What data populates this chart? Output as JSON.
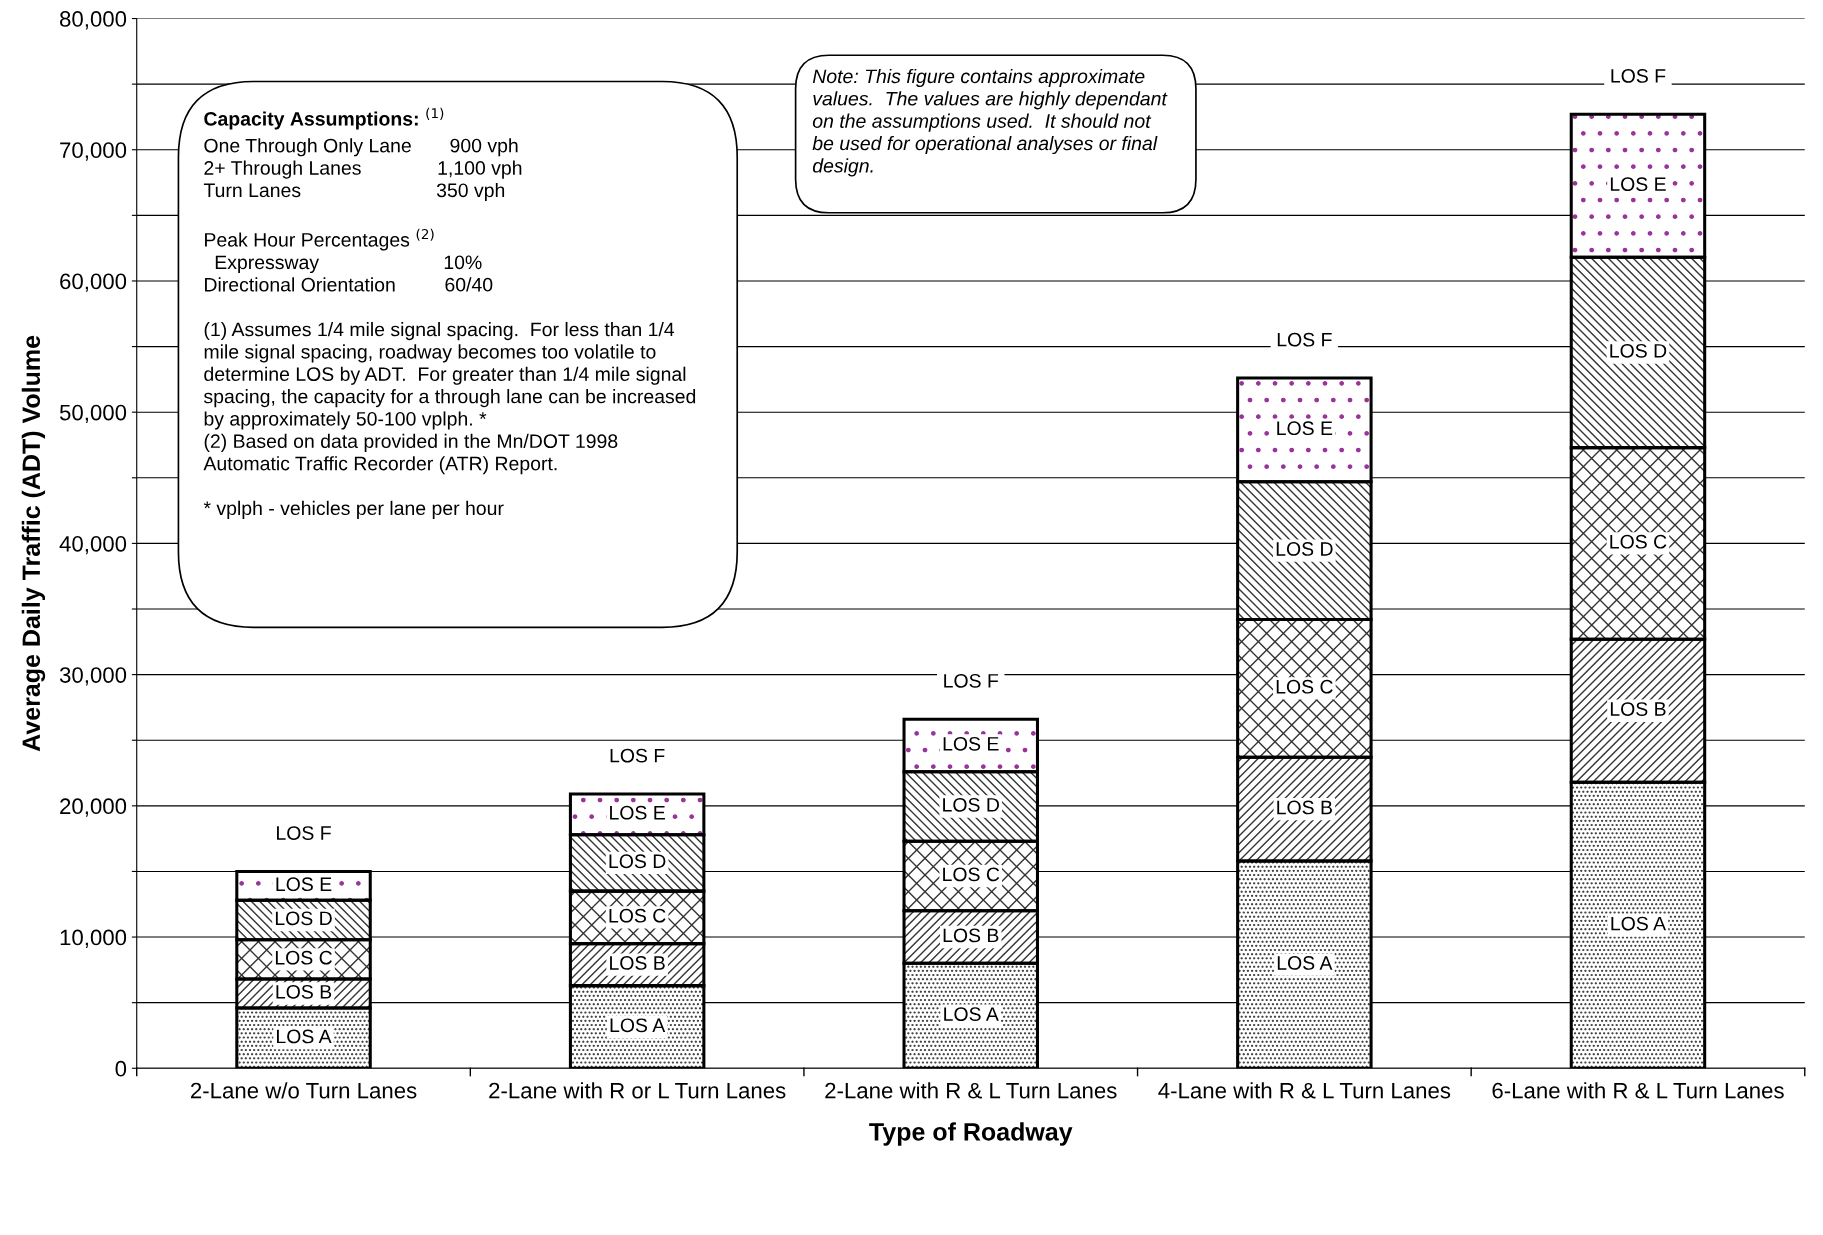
{
  "chart_data": {
    "type": "bar",
    "stacked": true,
    "xlabel": "Type of Roadway",
    "ylabel": "Average Daily Traffic (ADT) Volume",
    "categories": [
      "2-Lane w/o Turn Lanes",
      "2-Lane with R or L Turn Lanes",
      "2-Lane with R & L Turn Lanes",
      "4-Lane with R & L Turn Lanes",
      "6-Lane with R & L Turn Lanes"
    ],
    "series": [
      {
        "name": "LOS A",
        "color": "#ffffff",
        "values": [
          4600,
          6300,
          8000,
          15800,
          21800
        ]
      },
      {
        "name": "LOS B",
        "color": "#ffffff",
        "values": [
          2200,
          3200,
          4000,
          7900,
          10900
        ]
      },
      {
        "name": "LOS C",
        "color": "#ffffff",
        "values": [
          3000,
          4000,
          5300,
          10500,
          14600
        ]
      },
      {
        "name": "LOS D",
        "color": "#ffffff",
        "values": [
          3000,
          4300,
          5300,
          10500,
          14500
        ]
      },
      {
        "name": "LOS E",
        "color": "#ffffff",
        "values": [
          2200,
          3100,
          4000,
          7900,
          10900
        ]
      }
    ],
    "ylim": [
      0,
      80000
    ],
    "yticks": [
      {
        "value": 0,
        "label": "0"
      },
      {
        "value": 5000,
        "label": null
      },
      {
        "value": 10000,
        "label": "10,000"
      },
      {
        "value": 15000,
        "label": null
      },
      {
        "value": 20000,
        "label": "20,000"
      },
      {
        "value": 25000,
        "label": null
      },
      {
        "value": 30000,
        "label": "30,000"
      },
      {
        "value": 35000,
        "label": null
      },
      {
        "value": 40000,
        "label": "40,000"
      },
      {
        "value": 45000,
        "label": null
      },
      {
        "value": 50000,
        "label": "50,000"
      },
      {
        "value": 55000,
        "label": null
      },
      {
        "value": 60000,
        "label": "60,000"
      },
      {
        "value": 65000,
        "label": null
      },
      {
        "value": 70000,
        "label": "70,000"
      },
      {
        "value": 75000,
        "label": null
      },
      {
        "value": 80000,
        "label": "80,000"
      }
    ],
    "grid": "y",
    "legend": false,
    "annotations": [
      "LOS F",
      "LOS F",
      "LOS F",
      "LOS F",
      "LOS F",
      "Capacity Assumptions: $^{(1)}$",
      "One Through Only Lane       900 vph\n2+ Through Lanes              1,100 vph\nTurn Lanes                         350 vph\n\nPeak Hour Percentages $^{(2)}$\n  Expressway                       10%\nDirectional Orientation         60/40\n\n(1) Assumes 1/4 mile signal spacing.  For less than 1/4\nmile signal spacing, roadway becomes too volatile to\ndetermine LOS by ADT.  For greater than 1/4 mile signal\nspacing, the capacity for a through lane can be increased\nby approximately 50-100 vplph. *\n(2) Based on data provided in the Mn/DOT 1998\nAutomatic Traffic Recorder (ATR) Report.\n\n* vplph - vehicles per lane per hour",
      "Note: This figure contains approximate\nvalues.  The values are highly dependant\non the assumptions used.  It should not\nbe used for operational analyses or final\ndesign."
    ]
  }
}
